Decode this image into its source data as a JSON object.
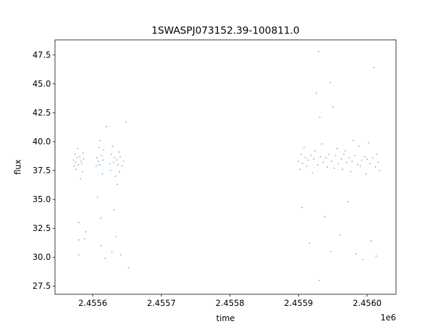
{
  "chart_data": {
    "type": "scatter",
    "title": "1SWASPJ073152.39-100811.0",
    "xlabel": "time",
    "ylabel": "flux",
    "x_offset_label": "1e6",
    "xlim": [
      2455545,
      2456042
    ],
    "ylim": [
      26.8,
      48.8
    ],
    "x_ticks": [
      {
        "value": 2455600,
        "label": "2.4556"
      },
      {
        "value": 2455700,
        "label": "2.4557"
      },
      {
        "value": 2455800,
        "label": "2.4558"
      },
      {
        "value": 2455900,
        "label": "2.4559"
      },
      {
        "value": 2456000,
        "label": "2.4560"
      }
    ],
    "y_ticks": [
      {
        "value": 27.5,
        "label": "27.5"
      },
      {
        "value": 30.0,
        "label": "30.0"
      },
      {
        "value": 32.5,
        "label": "32.5"
      },
      {
        "value": 35.0,
        "label": "35.0"
      },
      {
        "value": 37.5,
        "label": "37.5"
      },
      {
        "value": 40.0,
        "label": "40.0"
      },
      {
        "value": 42.5,
        "label": "42.5"
      },
      {
        "value": 45.0,
        "label": "45.0"
      },
      {
        "value": 47.5,
        "label": "47.5"
      }
    ],
    "grid": false,
    "marker_color": "#1f77b4",
    "series": [
      {
        "values": [
          [
            2455572,
            38.4
          ],
          [
            2455573,
            37.9
          ],
          [
            2455574,
            38.9
          ],
          [
            2455575,
            38.2
          ],
          [
            2455576,
            37.6
          ],
          [
            2455577,
            38.6
          ],
          [
            2455578,
            39.4
          ],
          [
            2455579,
            38.0
          ],
          [
            2455580,
            30.2
          ],
          [
            2455580,
            31.5
          ],
          [
            2455580,
            33.0
          ],
          [
            2455581,
            38.7
          ],
          [
            2455582,
            36.8
          ],
          [
            2455583,
            38.3
          ],
          [
            2455584,
            38.1
          ],
          [
            2455585,
            37.4
          ],
          [
            2455586,
            39.0
          ],
          [
            2455587,
            38.5
          ],
          [
            2455588,
            31.6
          ],
          [
            2455590,
            32.2
          ],
          [
            2455605,
            37.9
          ],
          [
            2455606,
            38.6
          ],
          [
            2455607,
            35.2
          ],
          [
            2455608,
            38.3
          ],
          [
            2455609,
            39.5
          ],
          [
            2455610,
            38.0
          ],
          [
            2455611,
            40.1
          ],
          [
            2455612,
            31.0
          ],
          [
            2455612,
            33.4
          ],
          [
            2455613,
            38.8
          ],
          [
            2455614,
            37.2
          ],
          [
            2455615,
            38.4
          ],
          [
            2455616,
            39.3
          ],
          [
            2455618,
            29.9
          ],
          [
            2455620,
            41.3
          ],
          [
            2455625,
            38.1
          ],
          [
            2455626,
            37.5
          ],
          [
            2455627,
            38.9
          ],
          [
            2455628,
            30.5
          ],
          [
            2455629,
            39.6
          ],
          [
            2455630,
            38.2
          ],
          [
            2455631,
            34.1
          ],
          [
            2455632,
            38.6
          ],
          [
            2455633,
            37.0
          ],
          [
            2455634,
            31.8
          ],
          [
            2455635,
            38.4
          ],
          [
            2455636,
            36.3
          ],
          [
            2455637,
            38.0
          ],
          [
            2455638,
            39.1
          ],
          [
            2455639,
            37.4
          ],
          [
            2455640,
            38.7
          ],
          [
            2455641,
            30.2
          ],
          [
            2455643,
            37.9
          ],
          [
            2455645,
            38.3
          ],
          [
            2455648,
            41.7
          ],
          [
            2455652,
            29.1
          ],
          [
            2455900,
            38.3
          ],
          [
            2455902,
            37.6
          ],
          [
            2455904,
            38.9
          ],
          [
            2455905,
            34.3
          ],
          [
            2455906,
            38.1
          ],
          [
            2455908,
            39.5
          ],
          [
            2455910,
            38.6
          ],
          [
            2455912,
            37.9
          ],
          [
            2455914,
            38.4
          ],
          [
            2455916,
            31.2
          ],
          [
            2455918,
            38.8
          ],
          [
            2455920,
            37.3
          ],
          [
            2455922,
            38.5
          ],
          [
            2455924,
            39.2
          ],
          [
            2455926,
            44.2
          ],
          [
            2455928,
            38.0
          ],
          [
            2455929,
            47.8
          ],
          [
            2455930,
            28.0
          ],
          [
            2455931,
            42.1
          ],
          [
            2455932,
            38.7
          ],
          [
            2455934,
            39.8
          ],
          [
            2455936,
            38.2
          ],
          [
            2455938,
            33.5
          ],
          [
            2455940,
            38.6
          ],
          [
            2455942,
            37.8
          ],
          [
            2455944,
            38.9
          ],
          [
            2455946,
            45.1
          ],
          [
            2455947,
            30.5
          ],
          [
            2455948,
            38.3
          ],
          [
            2455950,
            43.0
          ],
          [
            2455952,
            37.7
          ],
          [
            2455954,
            38.8
          ],
          [
            2455956,
            39.4
          ],
          [
            2455958,
            38.1
          ],
          [
            2455960,
            31.9
          ],
          [
            2455962,
            38.5
          ],
          [
            2455964,
            37.6
          ],
          [
            2455966,
            38.9
          ],
          [
            2455968,
            39.2
          ],
          [
            2455970,
            38.2
          ],
          [
            2455972,
            34.8
          ],
          [
            2455974,
            38.6
          ],
          [
            2455976,
            37.4
          ],
          [
            2455978,
            38.3
          ],
          [
            2455980,
            40.1
          ],
          [
            2455982,
            38.8
          ],
          [
            2455984,
            30.3
          ],
          [
            2455986,
            38.0
          ],
          [
            2455988,
            39.6
          ],
          [
            2455990,
            37.9
          ],
          [
            2455992,
            38.4
          ],
          [
            2455994,
            29.8
          ],
          [
            2455996,
            38.7
          ],
          [
            2455998,
            37.2
          ],
          [
            2456000,
            38.5
          ],
          [
            2456002,
            39.9
          ],
          [
            2456004,
            38.1
          ],
          [
            2456006,
            31.4
          ],
          [
            2456008,
            38.6
          ],
          [
            2456010,
            46.4
          ],
          [
            2456012,
            37.8
          ],
          [
            2456013,
            30.1
          ],
          [
            2456014,
            38.9
          ],
          [
            2456016,
            38.2
          ],
          [
            2456018,
            37.5
          ]
        ]
      }
    ]
  }
}
